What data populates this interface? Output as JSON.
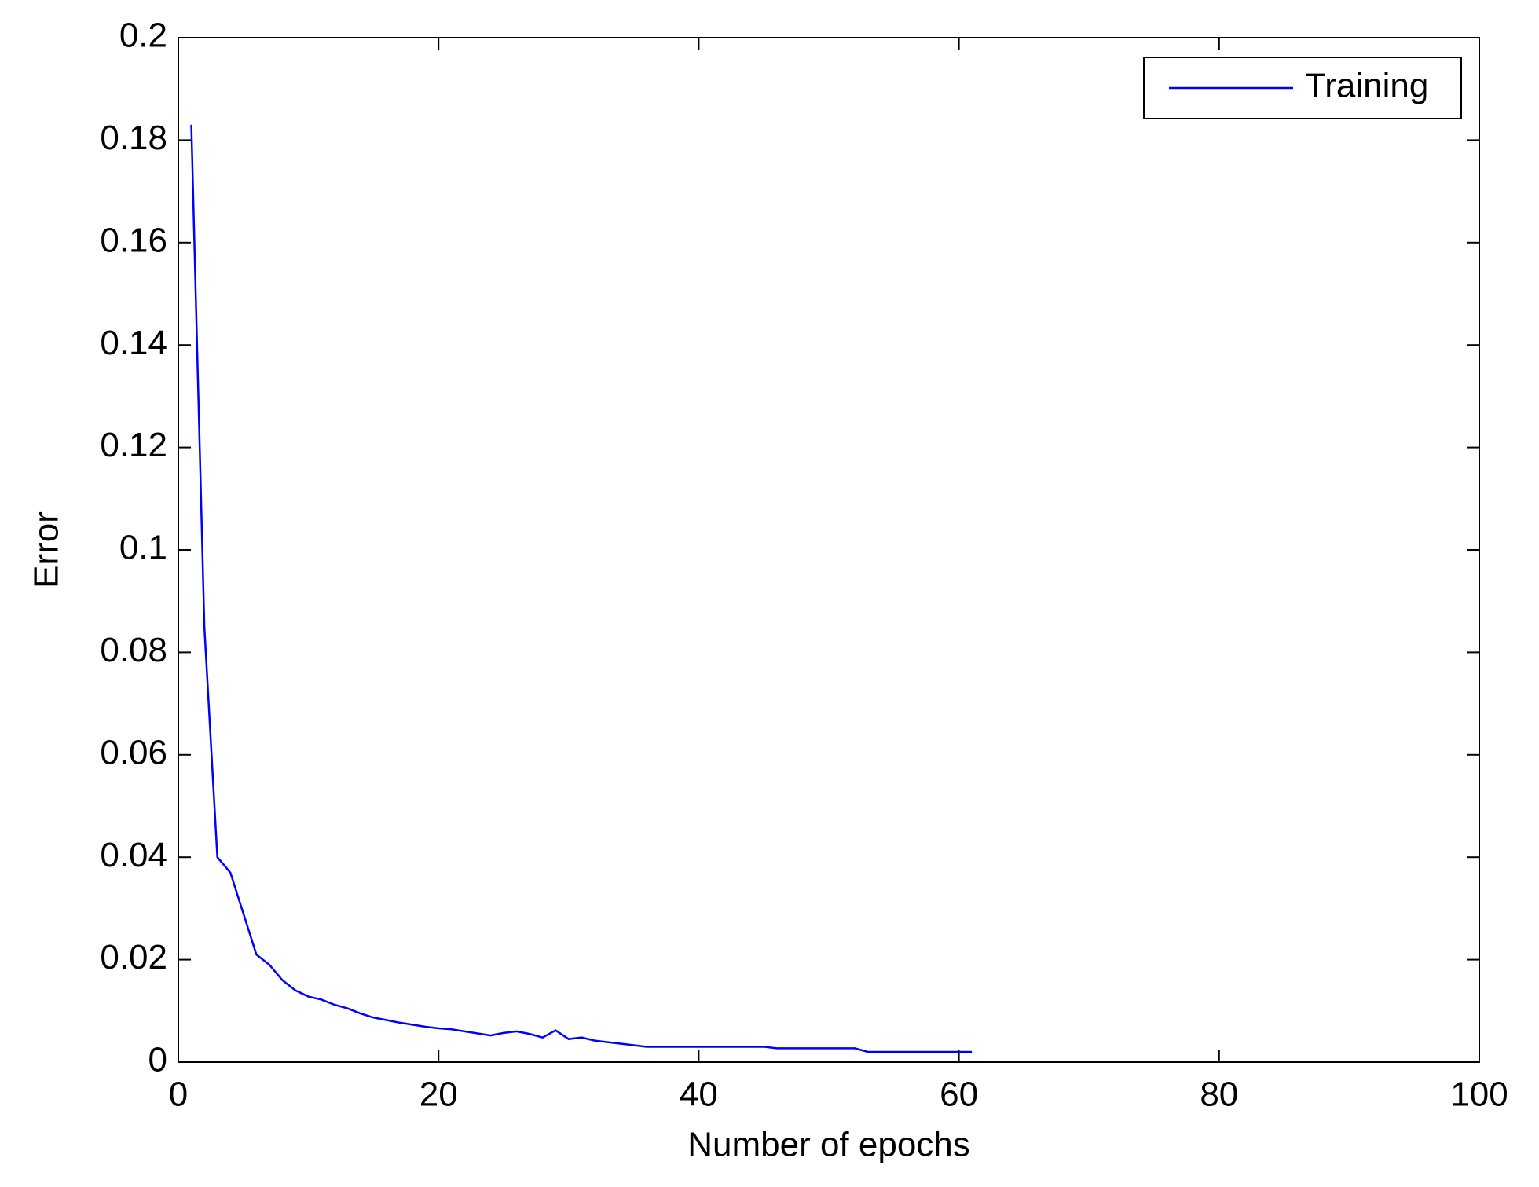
{
  "chart_data": {
    "type": "line",
    "xlabel": "Number of epochs",
    "ylabel": "Error",
    "x": [
      1,
      2,
      3,
      4,
      5,
      6,
      7,
      8,
      9,
      10,
      11,
      12,
      13,
      14,
      15,
      16,
      17,
      18,
      19,
      20,
      21,
      22,
      23,
      24,
      25,
      26,
      27,
      28,
      29,
      30,
      31,
      32,
      33,
      34,
      35,
      36,
      37,
      38,
      39,
      40,
      41,
      42,
      43,
      44,
      45,
      46,
      47,
      48,
      49,
      50,
      51,
      52,
      53,
      54,
      55,
      56,
      57,
      58,
      59,
      60,
      61
    ],
    "series": [
      {
        "name": "Training",
        "color": "#0000ff",
        "values": [
          0.183,
          0.085,
          0.04,
          0.037,
          0.029,
          0.021,
          0.019,
          0.016,
          0.014,
          0.0128,
          0.0122,
          0.0112,
          0.0105,
          0.0095,
          0.0087,
          0.0082,
          0.0077,
          0.0073,
          0.0069,
          0.0066,
          0.0064,
          0.006,
          0.0056,
          0.0052,
          0.0057,
          0.006,
          0.0055,
          0.0048,
          0.0062,
          0.0045,
          0.0048,
          0.0042,
          0.0039,
          0.0036,
          0.0033,
          0.003,
          0.003,
          0.003,
          0.003,
          0.003,
          0.003,
          0.003,
          0.003,
          0.003,
          0.003,
          0.0027,
          0.0027,
          0.0027,
          0.0027,
          0.0027,
          0.0027,
          0.0027,
          0.002,
          0.002,
          0.002,
          0.002,
          0.002,
          0.002,
          0.002,
          0.002,
          0.002
        ]
      }
    ],
    "xlim": [
      0,
      100
    ],
    "xticks": [
      0,
      20,
      40,
      60,
      80,
      100
    ],
    "ylim": [
      0,
      0.2
    ],
    "yticks": [
      0,
      0.02,
      0.04,
      0.06,
      0.08,
      0.1,
      0.12,
      0.14,
      0.16,
      0.18,
      0.2
    ],
    "grid": false,
    "legend_position": "upper-right"
  }
}
